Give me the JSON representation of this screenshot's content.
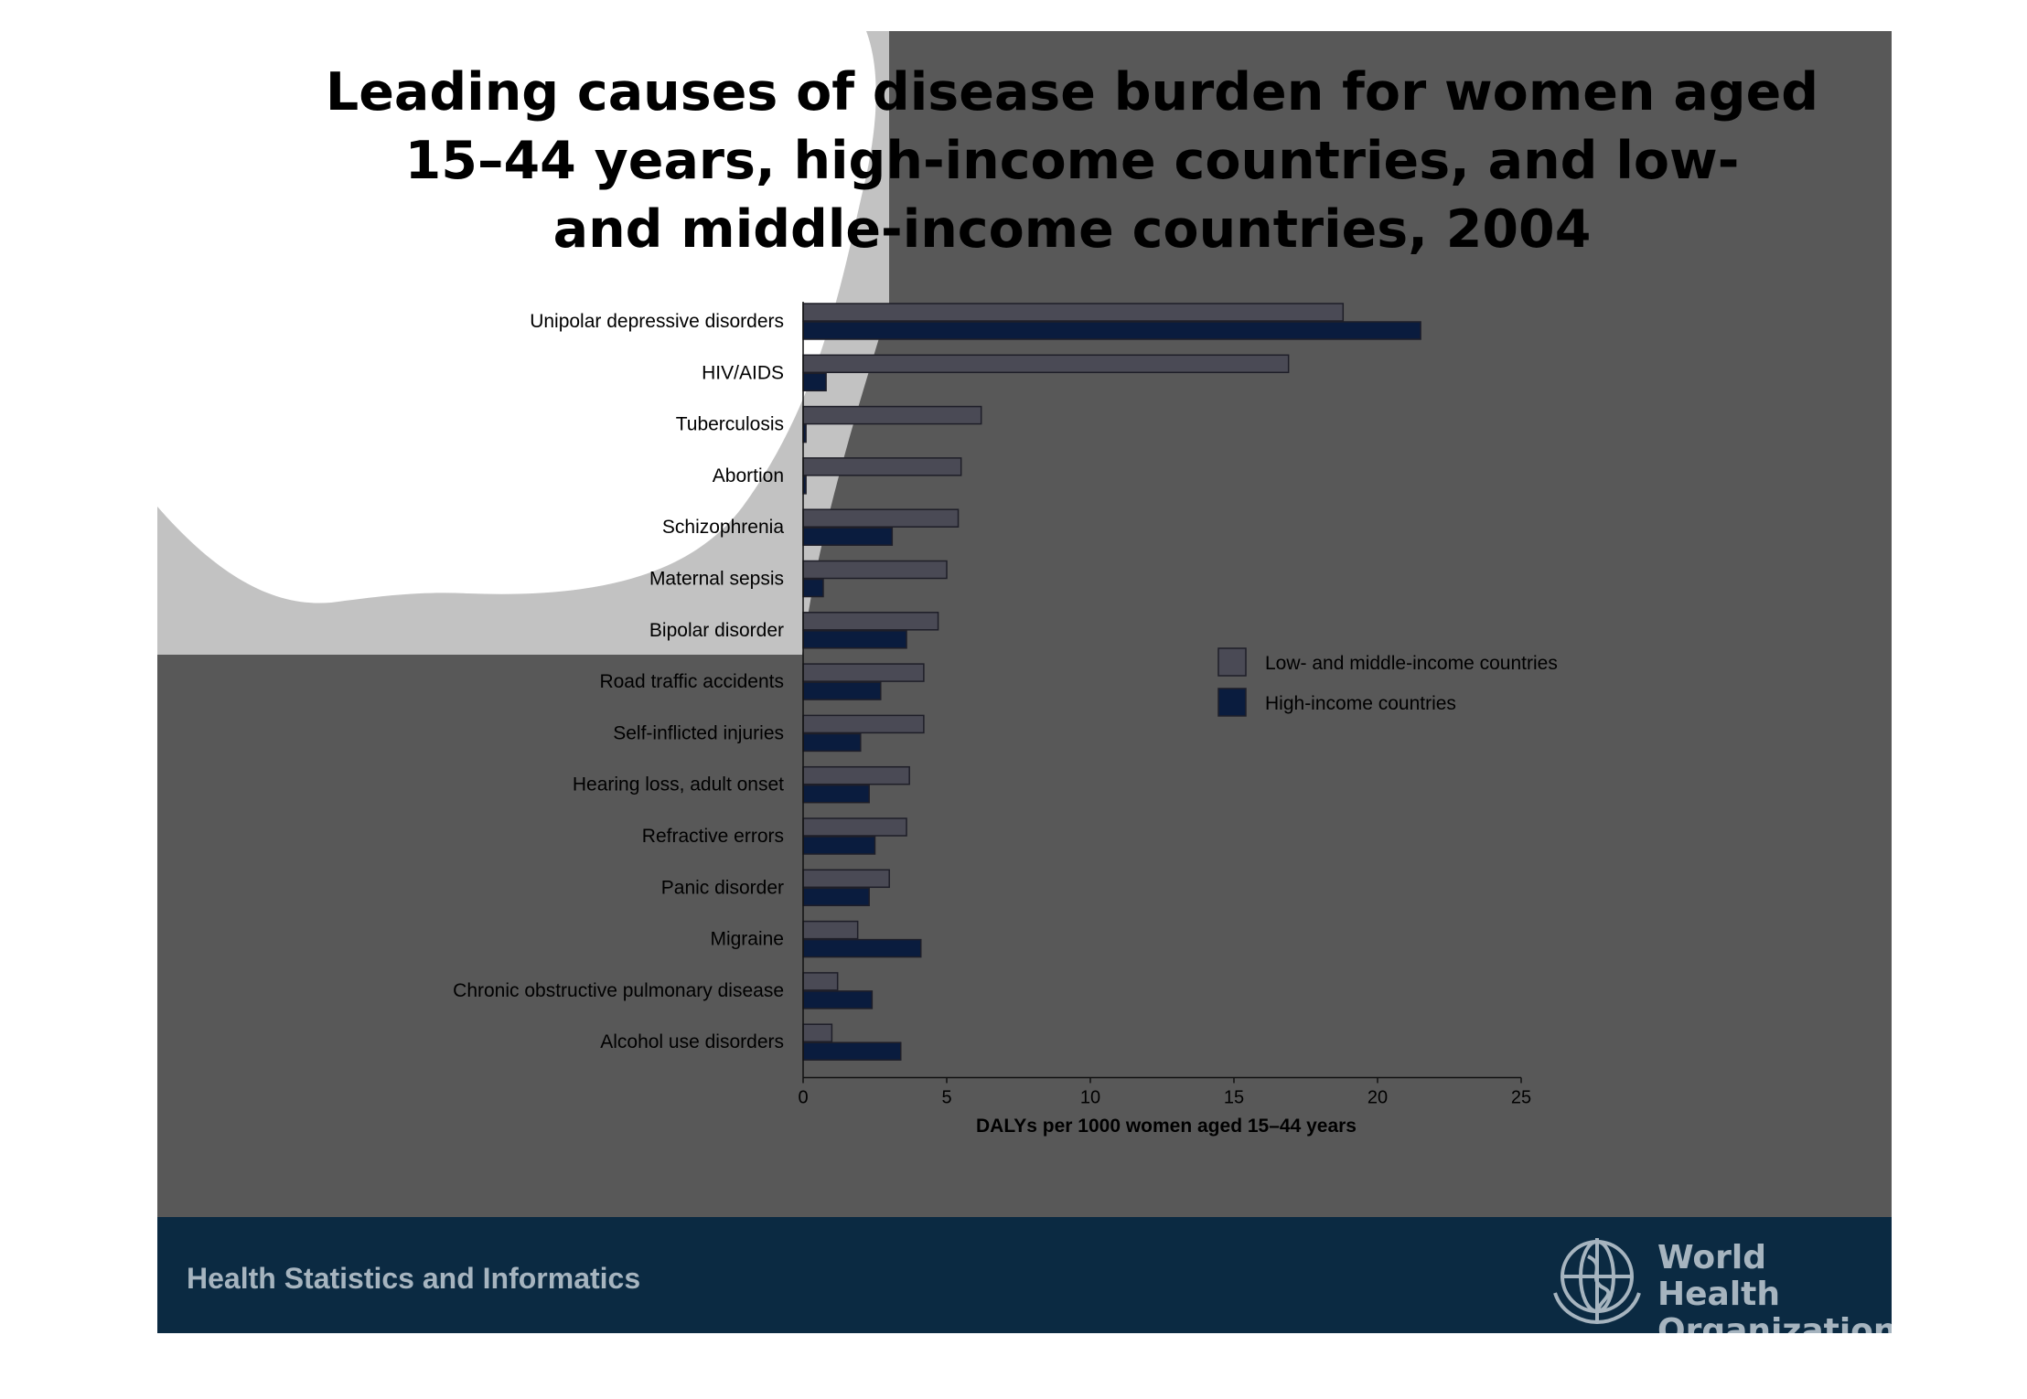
{
  "slide": {
    "title_lines": [
      "Leading causes of disease burden for women aged",
      "15–44 years, high-income countries, and low-",
      "and middle-income countries, 2004"
    ],
    "footer_text": "Health Statistics and Informatics",
    "organization_lines": [
      "World Health",
      "Organization"
    ],
    "colors": {
      "slide_bg": "#585858",
      "footer_bg": "#0b2a42",
      "footer_text": "#a6b4bf"
    }
  },
  "chart_data": {
    "type": "bar",
    "orientation": "horizontal",
    "title": "Leading causes of disease burden for women aged 15–44 years, high-income countries, and low- and middle-income countries, 2004",
    "xlabel": "DALYs per 1000 women aged 15–44 years",
    "ylabel": "",
    "xlim": [
      0,
      25
    ],
    "xticks": [
      0,
      5,
      10,
      15,
      20,
      25
    ],
    "grid": false,
    "legend_position": "right",
    "categories": [
      "Unipolar depressive disorders",
      "HIV/AIDS",
      "Tuberculosis",
      "Abortion",
      "Schizophrenia",
      "Maternal sepsis",
      "Bipolar disorder",
      "Road traffic accidents",
      "Self-inflicted injuries",
      "Hearing loss, adult onset",
      "Refractive errors",
      "Panic disorder",
      "Migraine",
      "Chronic obstructive pulmonary disease",
      "Alcohol use disorders"
    ],
    "series": [
      {
        "name": "Low- and middle-income countries",
        "color": "#4a4a55",
        "values": [
          18.8,
          16.9,
          6.2,
          5.5,
          5.4,
          5.0,
          4.7,
          4.2,
          4.2,
          3.7,
          3.6,
          3.0,
          1.9,
          1.2,
          1.0
        ]
      },
      {
        "name": "High-income countries",
        "color": "#0a1c3e",
        "values": [
          21.5,
          0.8,
          0.1,
          0.1,
          3.1,
          0.7,
          3.6,
          2.7,
          2.0,
          2.3,
          2.5,
          2.3,
          4.1,
          2.4,
          3.4
        ]
      }
    ]
  }
}
